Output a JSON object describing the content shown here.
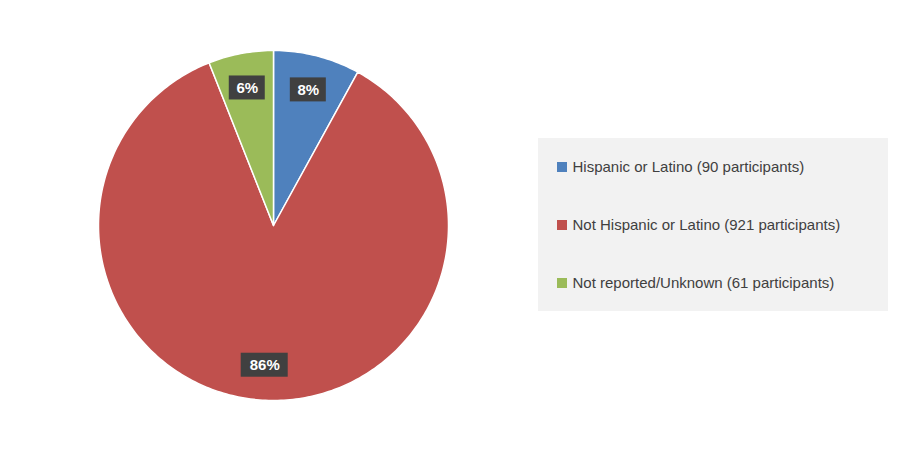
{
  "chart_data": {
    "type": "pie",
    "categories": [
      "Hispanic or Latino (90 participants)",
      "Not Hispanic or Latino (921 participants)",
      "Not reported/Unknown (61 participants)"
    ],
    "values": [
      8,
      86,
      6
    ],
    "value_labels": [
      "8%",
      "86%",
      "6%"
    ],
    "colors": [
      "#4f81bd",
      "#c0504d",
      "#9bbb59"
    ],
    "data_labels": true,
    "legend": "right"
  }
}
